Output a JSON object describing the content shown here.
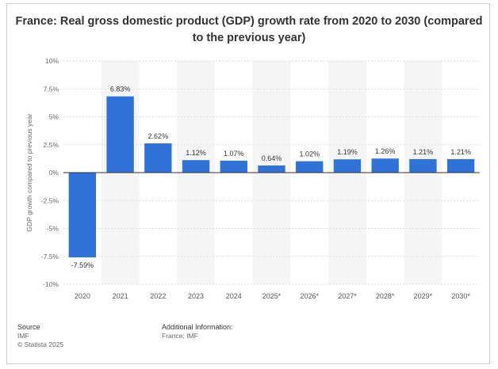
{
  "title": "France: Real gross domestic product (GDP) growth rate from 2020 to 2030 (compared\nto the previous year)",
  "chart_data": {
    "type": "bar",
    "title": "France: Real gross domestic product (GDP) growth rate from 2020 to 2030 (compared to the previous year)",
    "xlabel": "",
    "ylabel": "GDP growth compared to previous year",
    "categories": [
      "2020",
      "2021",
      "2022",
      "2023",
      "2024",
      "2025*",
      "2026*",
      "2027*",
      "2028*",
      "2029*",
      "2030*"
    ],
    "values": [
      -7.59,
      6.83,
      2.62,
      1.12,
      1.07,
      0.64,
      1.02,
      1.19,
      1.26,
      1.21,
      1.21
    ],
    "value_labels": [
      "-7.59%",
      "6.83%",
      "2.62%",
      "1.12%",
      "1.07%",
      "0.64%",
      "1.02%",
      "1.19%",
      "1.26%",
      "1.21%",
      "1.21%"
    ],
    "ylim": [
      -10,
      10
    ],
    "yticks": [
      10,
      7.5,
      5,
      2.5,
      0,
      -2.5,
      -5,
      -7.5,
      -10
    ],
    "ytick_labels": [
      "10%",
      "7.5%",
      "5%",
      "2.5%",
      "0%",
      "-2.5%",
      "-5%",
      "-7.5%",
      "-10%"
    ],
    "grid": true,
    "bar_color": "#2f73d9",
    "band_color": "#f5f5f5"
  },
  "footer": {
    "source_heading": "Source",
    "source_name": "IMF",
    "copyright": "© Statista 2025",
    "info_heading": "Additional Information:",
    "info_text": "France; IMF"
  }
}
